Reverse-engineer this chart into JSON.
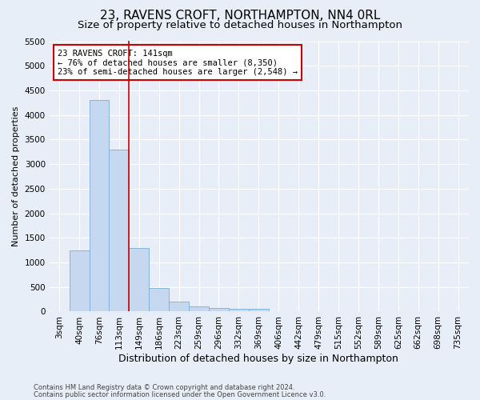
{
  "title": "23, RAVENS CROFT, NORTHAMPTON, NN4 0RL",
  "subtitle": "Size of property relative to detached houses in Northampton",
  "xlabel": "Distribution of detached houses by size in Northampton",
  "ylabel": "Number of detached properties",
  "categories": [
    "3sqm",
    "40sqm",
    "76sqm",
    "113sqm",
    "149sqm",
    "186sqm",
    "223sqm",
    "259sqm",
    "296sqm",
    "332sqm",
    "369sqm",
    "406sqm",
    "442sqm",
    "479sqm",
    "515sqm",
    "552sqm",
    "589sqm",
    "625sqm",
    "662sqm",
    "698sqm",
    "735sqm"
  ],
  "values": [
    0,
    1250,
    4300,
    3300,
    1300,
    480,
    200,
    100,
    80,
    60,
    50,
    0,
    0,
    0,
    0,
    0,
    0,
    0,
    0,
    0,
    0
  ],
  "bar_color": "#c5d8f0",
  "bar_edgecolor": "#7aadd4",
  "vline_color": "#cc0000",
  "vline_index": 3.5,
  "annotation_text": "23 RAVENS CROFT: 141sqm\n← 76% of detached houses are smaller (8,350)\n23% of semi-detached houses are larger (2,548) →",
  "annotation_box_edgecolor": "#cc0000",
  "ylim": [
    0,
    5500
  ],
  "yticks": [
    0,
    500,
    1000,
    1500,
    2000,
    2500,
    3000,
    3500,
    4000,
    4500,
    5000,
    5500
  ],
  "footer1": "Contains HM Land Registry data © Crown copyright and database right 2024.",
  "footer2": "Contains public sector information licensed under the Open Government Licence v3.0.",
  "bg_color": "#e8eef8",
  "plot_bg_color": "#e8eef8",
  "title_fontsize": 11,
  "subtitle_fontsize": 9.5,
  "tick_fontsize": 7.5,
  "ylabel_fontsize": 8,
  "xlabel_fontsize": 9,
  "footer_fontsize": 6,
  "annotation_fontsize": 7.5
}
